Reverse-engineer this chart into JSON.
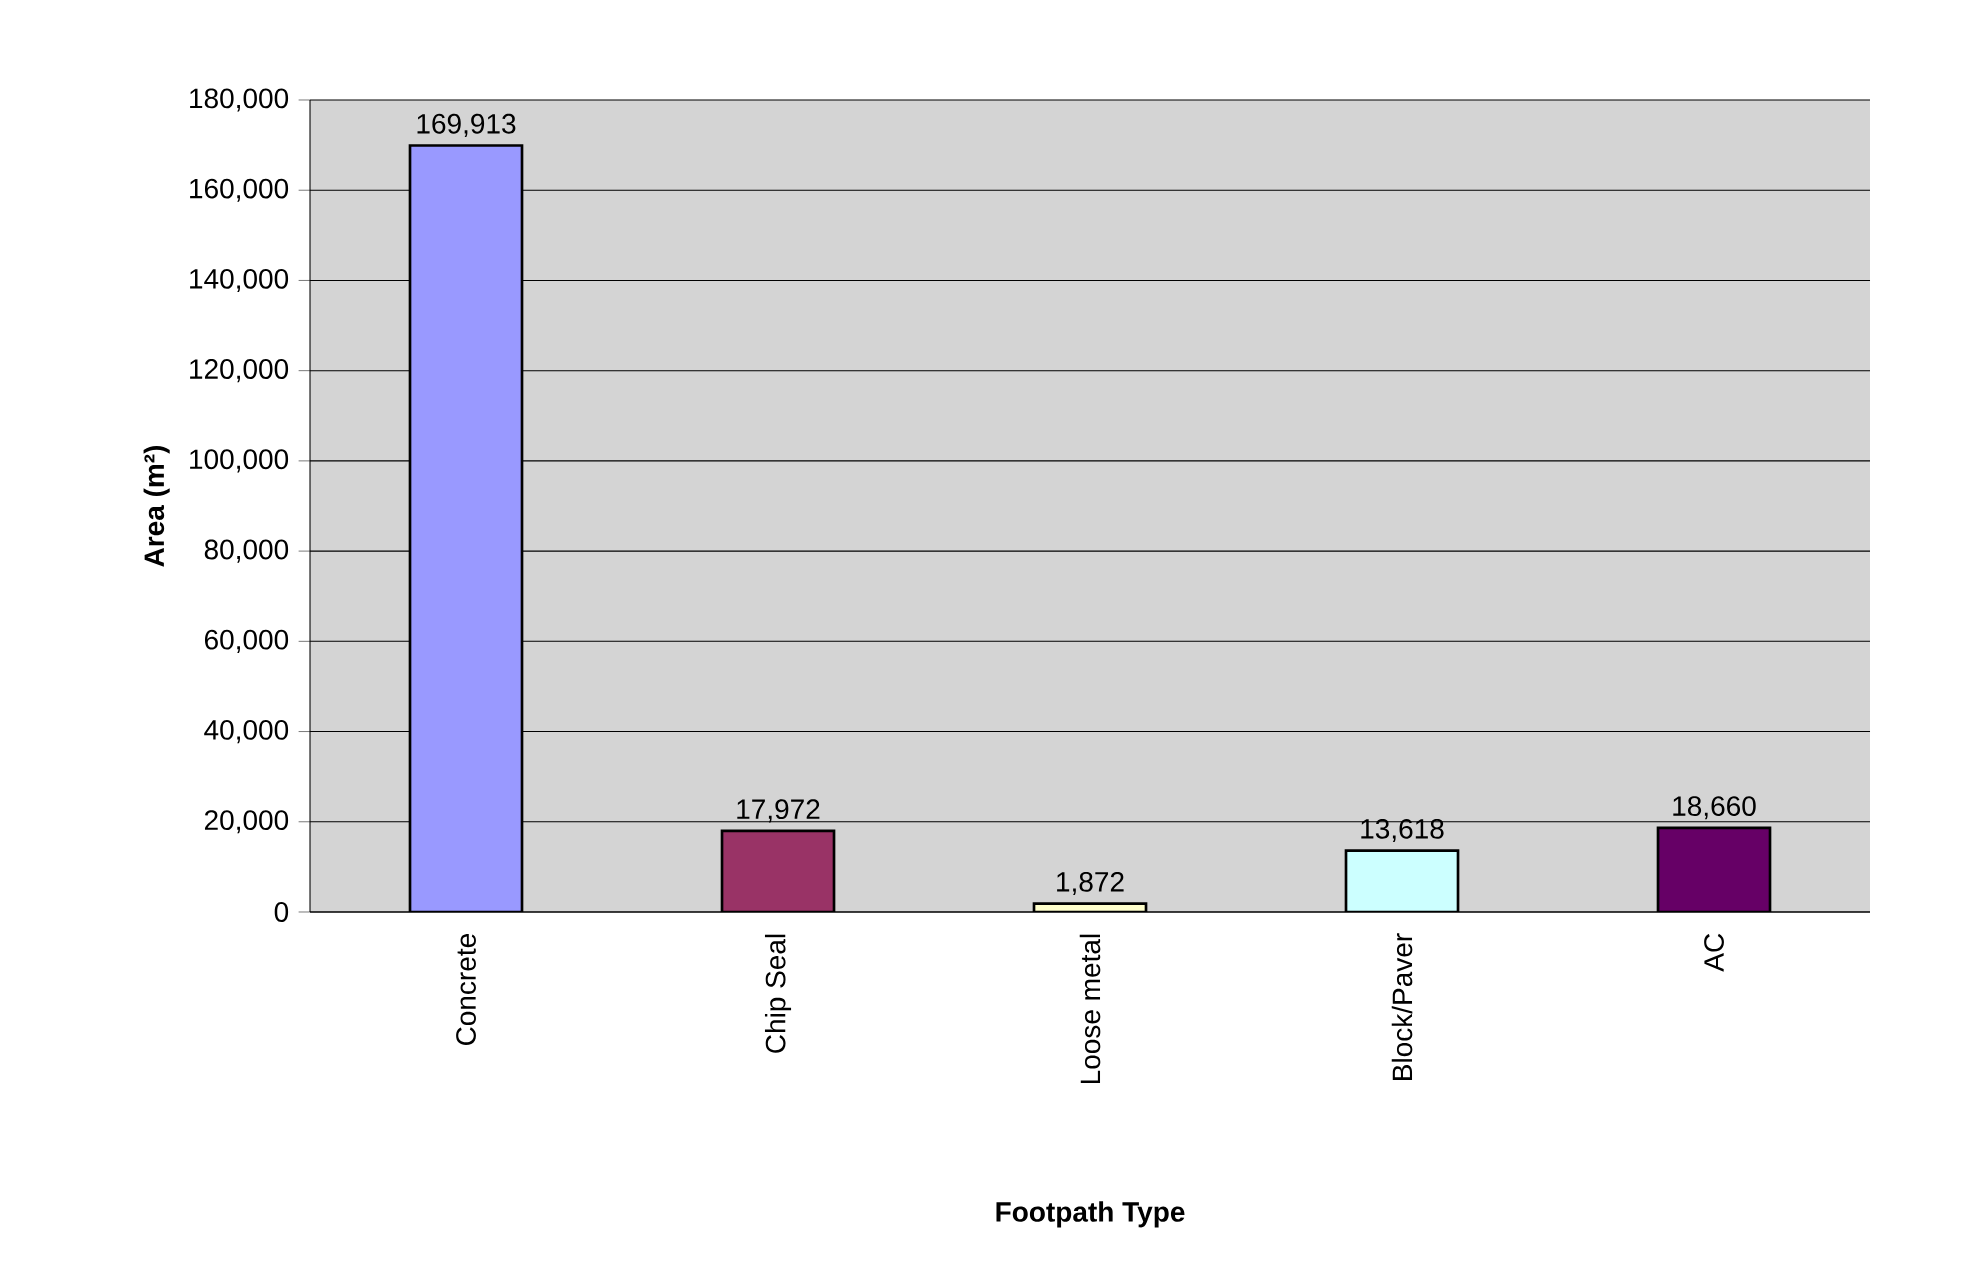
{
  "chart_data": {
    "type": "bar",
    "xlabel": "Footpath Type",
    "ylabel": "Area (m²)",
    "categories": [
      "Concrete",
      "Chip Seal",
      "Loose metal",
      "Block/Paver",
      "AC"
    ],
    "values": [
      169913,
      17972,
      1872,
      13618,
      18660
    ],
    "colors": [
      "#9999ff",
      "#993366",
      "#ffffcc",
      "#ccffff",
      "#660066"
    ],
    "value_labels": [
      "169,913",
      "17,972",
      "1,872",
      "13,618",
      "18,660"
    ],
    "ylim": [
      0,
      180000
    ],
    "yticks": [
      {
        "value": 0,
        "label": "0"
      },
      {
        "value": 20000,
        "label": "20,000"
      },
      {
        "value": 40000,
        "label": "40,000"
      },
      {
        "value": 60000,
        "label": "60,000"
      },
      {
        "value": 80000,
        "label": "80,000"
      },
      {
        "value": 100000,
        "label": "100,000"
      },
      {
        "value": 120000,
        "label": "120,000"
      },
      {
        "value": 140000,
        "label": "140,000"
      },
      {
        "value": 160000,
        "label": "160,000"
      },
      {
        "value": 180000,
        "label": "180,000"
      }
    ],
    "grid": "y"
  }
}
